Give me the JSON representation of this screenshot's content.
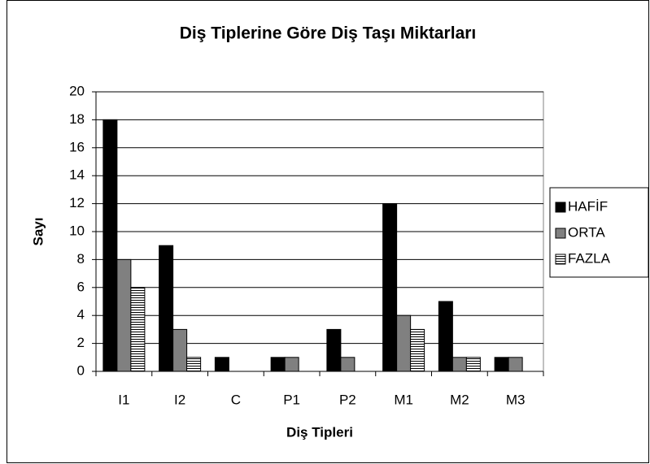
{
  "chart_data": {
    "type": "bar",
    "title": "Diş Tiplerine Göre Diş Taşı Miktarları",
    "x_label": "Diş Tipleri",
    "y_label": "Sayı",
    "categories": [
      "I1",
      "I2",
      "C",
      "P1",
      "P2",
      "M1",
      "M2",
      "M3"
    ],
    "series": [
      {
        "name": "HAFİF",
        "color": "#000000",
        "values": [
          18,
          9,
          1,
          1,
          3,
          12,
          5,
          1
        ]
      },
      {
        "name": "ORTA",
        "color": "#808080",
        "values": [
          8,
          3,
          0,
          1,
          1,
          4,
          1,
          1
        ]
      },
      {
        "name": "FAZLA",
        "color": "#ffffff",
        "hatch": "horizontal",
        "values": [
          6,
          1,
          0,
          0,
          0,
          3,
          1,
          0
        ]
      }
    ],
    "ylim": [
      0,
      20
    ],
    "yticks": [
      0,
      2,
      4,
      6,
      8,
      10,
      12,
      14,
      16,
      18,
      20
    ],
    "grid": true,
    "legend": "right"
  }
}
